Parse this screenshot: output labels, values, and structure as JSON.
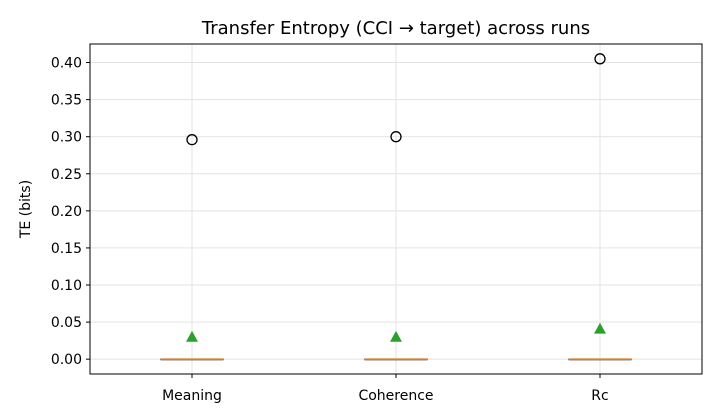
{
  "chart_data": {
    "type": "box",
    "title": "Transfer Entropy (CCI → target) across runs",
    "xlabel": "",
    "ylabel": "TE (bits)",
    "categories": [
      "Meaning",
      "Coherence",
      "Rc"
    ],
    "ylim": [
      -0.02,
      0.425
    ],
    "yticks": [
      0.0,
      0.05,
      0.1,
      0.15,
      0.2,
      0.25,
      0.3,
      0.35,
      0.4
    ],
    "ytick_labels": [
      "0.00",
      "0.05",
      "0.10",
      "0.15",
      "0.20",
      "0.25",
      "0.30",
      "0.35",
      "0.40"
    ],
    "grid": true,
    "boxes": [
      {
        "category": "Meaning",
        "q1": 0.0,
        "median": 0.0,
        "q3": 0.0,
        "whisker_low": 0.0,
        "whisker_high": 0.0,
        "mean": 0.03,
        "outliers": [
          0.296
        ]
      },
      {
        "category": "Coherence",
        "q1": 0.0,
        "median": 0.0,
        "q3": 0.0,
        "whisker_low": 0.0,
        "whisker_high": 0.0,
        "mean": 0.03,
        "outliers": [
          0.3
        ]
      },
      {
        "category": "Rc",
        "q1": 0.0,
        "median": 0.0,
        "q3": 0.0,
        "whisker_low": 0.0,
        "whisker_high": 0.0,
        "mean": 0.041,
        "outliers": [
          0.405
        ]
      }
    ],
    "colors": {
      "median": "#e07b20",
      "box": "#1f1f1f",
      "mean_marker": "#2ca02c",
      "outlier_edge": "#000000",
      "grid": "#e3e3e3"
    }
  }
}
